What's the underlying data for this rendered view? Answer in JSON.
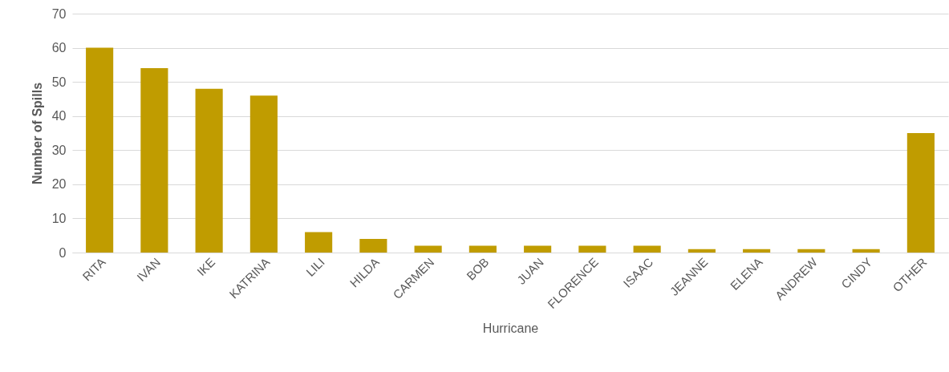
{
  "chart_data": {
    "type": "bar",
    "xlabel": "Hurricane",
    "ylabel": "Number of Spills",
    "categories": [
      "RITA",
      "IVAN",
      "IKE",
      "KATRINA",
      "LILI",
      "HILDA",
      "CARMEN",
      "BOB",
      "JUAN",
      "FLORENCE",
      "ISAAC",
      "JEANNE",
      "ELENA",
      "ANDREW",
      "CINDY",
      "OTHER"
    ],
    "values": [
      60,
      54,
      48,
      46,
      6,
      4,
      2,
      2,
      2,
      2,
      2,
      1,
      1,
      1,
      1,
      35
    ],
    "color": "#c09c00",
    "ylim": [
      0,
      70
    ],
    "yticks": [
      0,
      10,
      20,
      30,
      40,
      50,
      60,
      70
    ],
    "grid": "y"
  }
}
